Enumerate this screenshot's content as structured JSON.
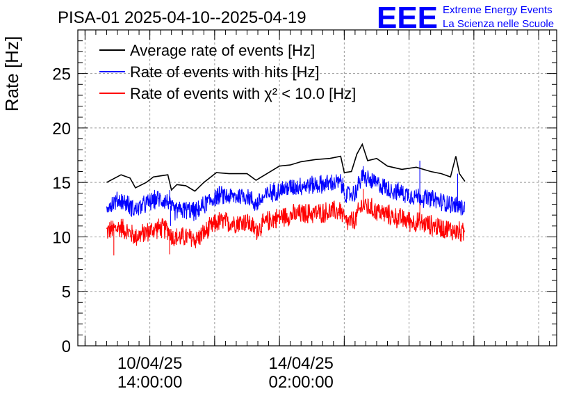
{
  "chart_data": {
    "type": "line",
    "title": "PISA-01 2025-04-10--2025-04-19",
    "ylabel": "Rate [Hz]",
    "xlabel": "",
    "ylim": [
      0,
      29
    ],
    "y_ticks": [
      0,
      5,
      10,
      15,
      20,
      25
    ],
    "x_axis": {
      "type": "time",
      "range": [
        "2025-04-08 22:00",
        "2025-04-20 00:00"
      ],
      "labeled_ticks": [
        {
          "at": "2025-04-10 14:00",
          "date_label": "10/04/25",
          "time_label": "14:00:00"
        },
        {
          "at": "2025-04-14 02:00",
          "date_label": "14/04/25",
          "time_label": "02:00:00"
        }
      ]
    },
    "grid": true,
    "legend_position": "top-left",
    "brand": {
      "logo_text": "EEE",
      "line1": "Extreme Energy Events",
      "line2": "La Scienza nelle Scuole",
      "color": "#0000ff"
    },
    "series": [
      {
        "name": "Average rate of events [Hz]",
        "color": "#000000",
        "noise": 0,
        "points": [
          [
            "2025-04-09 14:00",
            15.0
          ],
          [
            "2025-04-09 22:00",
            15.7
          ],
          [
            "2025-04-10 03:00",
            15.4
          ],
          [
            "2025-04-10 06:00",
            14.5
          ],
          [
            "2025-04-10 12:00",
            15.0
          ],
          [
            "2025-04-10 16:00",
            15.5
          ],
          [
            "2025-04-11 00:00",
            15.7
          ],
          [
            "2025-04-11 02:00",
            14.3
          ],
          [
            "2025-04-11 05:00",
            14.8
          ],
          [
            "2025-04-11 10:00",
            14.7
          ],
          [
            "2025-04-11 15:00",
            14.2
          ],
          [
            "2025-04-11 20:00",
            15.0
          ],
          [
            "2025-04-12 03:00",
            15.9
          ],
          [
            "2025-04-12 10:00",
            15.8
          ],
          [
            "2025-04-12 20:00",
            15.8
          ],
          [
            "2025-04-13 01:00",
            15.2
          ],
          [
            "2025-04-13 08:00",
            15.9
          ],
          [
            "2025-04-13 14:00",
            16.5
          ],
          [
            "2025-04-13 20:00",
            16.6
          ],
          [
            "2025-04-14 02:00",
            16.9
          ],
          [
            "2025-04-14 10:00",
            17.1
          ],
          [
            "2025-04-14 18:00",
            17.2
          ],
          [
            "2025-04-15 00:00",
            17.4
          ],
          [
            "2025-04-15 02:00",
            15.9
          ],
          [
            "2025-04-15 06:00",
            16.0
          ],
          [
            "2025-04-15 09:00",
            17.6
          ],
          [
            "2025-04-15 12:00",
            18.5
          ],
          [
            "2025-04-15 15:00",
            17.0
          ],
          [
            "2025-04-15 20:00",
            17.2
          ],
          [
            "2025-04-16 02:00",
            16.5
          ],
          [
            "2025-04-16 10:00",
            16.2
          ],
          [
            "2025-04-16 18:00",
            16.4
          ],
          [
            "2025-04-17 02:00",
            16.0
          ],
          [
            "2025-04-17 08:00",
            15.8
          ],
          [
            "2025-04-17 13:00",
            15.5
          ],
          [
            "2025-04-17 16:00",
            17.4
          ],
          [
            "2025-04-17 18:00",
            15.8
          ],
          [
            "2025-04-17 21:00",
            15.1
          ]
        ]
      },
      {
        "name": "Rate of events with hits [Hz]",
        "color": "#0000ff",
        "noise": 1.0,
        "points": [
          [
            "2025-04-09 14:00",
            12.9
          ],
          [
            "2025-04-09 22:00",
            13.4
          ],
          [
            "2025-04-10 06:00",
            12.5
          ],
          [
            "2025-04-10 12:00",
            13.0
          ],
          [
            "2025-04-10 18:00",
            13.5
          ],
          [
            "2025-04-11 00:00",
            13.3
          ],
          [
            "2025-04-11 03:00",
            12.4
          ],
          [
            "2025-04-11 10:00",
            12.5
          ],
          [
            "2025-04-11 16:00",
            12.3
          ],
          [
            "2025-04-11 22:00",
            13.2
          ],
          [
            "2025-04-12 04:00",
            13.8
          ],
          [
            "2025-04-12 12:00",
            13.7
          ],
          [
            "2025-04-12 20:00",
            13.8
          ],
          [
            "2025-04-13 01:00",
            13.0
          ],
          [
            "2025-04-13 08:00",
            14.0
          ],
          [
            "2025-04-13 16:00",
            14.4
          ],
          [
            "2025-04-14 02:00",
            14.7
          ],
          [
            "2025-04-14 12:00",
            14.8
          ],
          [
            "2025-04-15 00:00",
            15.0
          ],
          [
            "2025-04-15 03:00",
            13.8
          ],
          [
            "2025-04-15 08:00",
            14.0
          ],
          [
            "2025-04-15 12:00",
            15.6
          ],
          [
            "2025-04-15 18:00",
            15.0
          ],
          [
            "2025-04-16 06:00",
            14.2
          ],
          [
            "2025-04-16 16:00",
            13.8
          ],
          [
            "2025-04-17 04:00",
            13.4
          ],
          [
            "2025-04-17 14:00",
            13.0
          ],
          [
            "2025-04-17 21:00",
            12.6
          ]
        ],
        "spikes": [
          [
            "2025-04-11 01:00",
            14.3
          ],
          [
            "2025-04-11 01:30",
            11.0
          ],
          [
            "2025-04-15 12:30",
            16.5
          ],
          [
            "2025-04-16 20:00",
            17.0
          ],
          [
            "2025-04-17 17:00",
            15.8
          ]
        ]
      },
      {
        "name": "Rate of events with χ² < 10.0 [Hz]",
        "color": "#ff0000",
        "noise": 1.1,
        "points": [
          [
            "2025-04-09 14:00",
            10.5
          ],
          [
            "2025-04-09 22:00",
            10.9
          ],
          [
            "2025-04-10 06:00",
            10.0
          ],
          [
            "2025-04-10 12:00",
            10.4
          ],
          [
            "2025-04-10 18:00",
            10.8
          ],
          [
            "2025-04-11 00:00",
            10.7
          ],
          [
            "2025-04-11 03:00",
            9.9
          ],
          [
            "2025-04-11 10:00",
            10.0
          ],
          [
            "2025-04-11 16:00",
            9.8
          ],
          [
            "2025-04-11 22:00",
            10.6
          ],
          [
            "2025-04-12 04:00",
            11.4
          ],
          [
            "2025-04-12 12:00",
            11.3
          ],
          [
            "2025-04-12 20:00",
            11.4
          ],
          [
            "2025-04-13 01:00",
            10.6
          ],
          [
            "2025-04-13 08:00",
            11.5
          ],
          [
            "2025-04-13 16:00",
            11.9
          ],
          [
            "2025-04-14 02:00",
            12.1
          ],
          [
            "2025-04-14 12:00",
            12.2
          ],
          [
            "2025-04-15 00:00",
            12.4
          ],
          [
            "2025-04-15 03:00",
            11.3
          ],
          [
            "2025-04-15 08:00",
            11.5
          ],
          [
            "2025-04-15 12:00",
            13.0
          ],
          [
            "2025-04-15 18:00",
            12.5
          ],
          [
            "2025-04-16 06:00",
            11.8
          ],
          [
            "2025-04-16 16:00",
            11.4
          ],
          [
            "2025-04-17 04:00",
            11.0
          ],
          [
            "2025-04-17 14:00",
            10.6
          ],
          [
            "2025-04-17 21:00",
            10.3
          ]
        ],
        "spikes": [
          [
            "2025-04-09 18:00",
            8.3
          ],
          [
            "2025-04-11 01:00",
            8.4
          ],
          [
            "2025-04-15 12:30",
            14.4
          ],
          [
            "2025-04-16 20:00",
            13.7
          ]
        ]
      }
    ]
  }
}
